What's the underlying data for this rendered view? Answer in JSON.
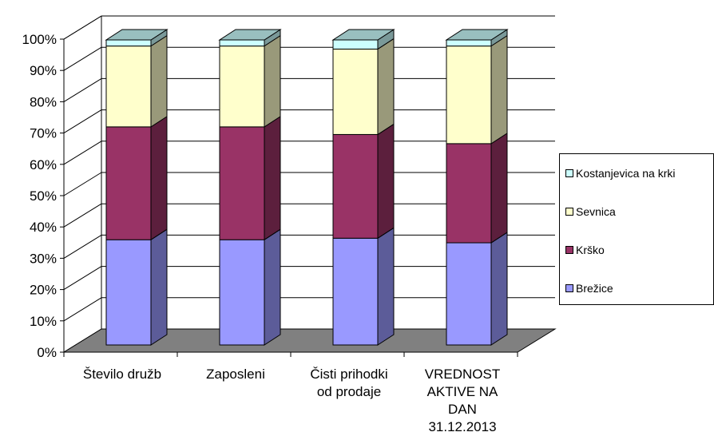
{
  "chart_data": {
    "type": "bar",
    "stacked": "percent",
    "categories": [
      [
        "Število družb"
      ],
      [
        "Zaposleni"
      ],
      [
        "Čisti prihodki",
        "od prodaje"
      ],
      [
        "VREDNOST",
        "AKTIVE NA",
        "DAN",
        "31.12.2013"
      ]
    ],
    "series": [
      {
        "name": "Brežice",
        "color": "#9999ff",
        "values": [
          34.5,
          34.5,
          35.0,
          33.5
        ]
      },
      {
        "name": "Krško",
        "color": "#993366",
        "values": [
          37.0,
          37.0,
          34.0,
          32.5
        ]
      },
      {
        "name": "Sevnica",
        "color": "#ffffcc",
        "values": [
          26.5,
          26.5,
          28.0,
          32.0
        ]
      },
      {
        "name": "Kostanjevica na krki",
        "color": "#ccffff",
        "values": [
          2.0,
          2.0,
          3.0,
          2.0
        ]
      }
    ],
    "yticks": [
      "0%",
      "10%",
      "20%",
      "30%",
      "40%",
      "50%",
      "60%",
      "70%",
      "80%",
      "90%",
      "100%"
    ],
    "ylim": [
      0,
      100
    ],
    "grid": true,
    "legend_position": "right",
    "three_d": true
  }
}
